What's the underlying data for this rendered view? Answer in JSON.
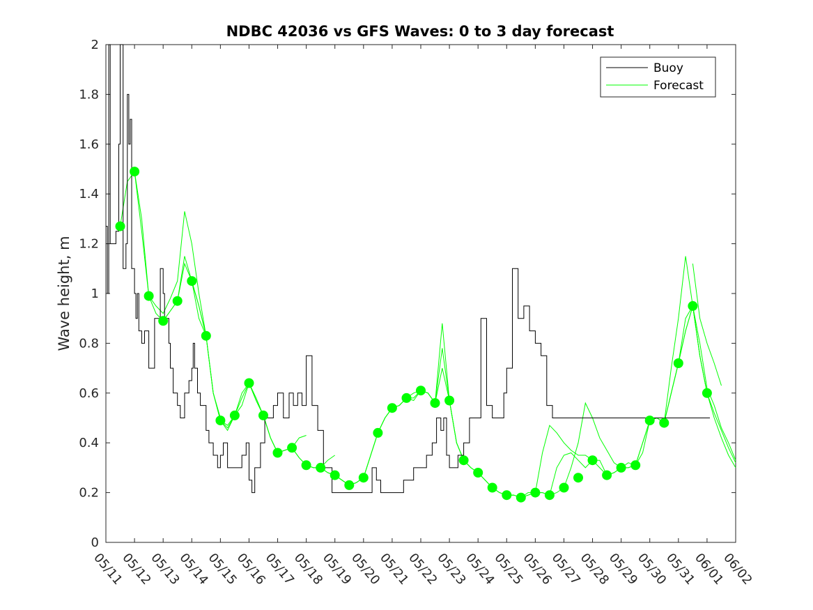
{
  "chart_data": {
    "type": "line",
    "title": "NDBC 42036 vs GFS Waves: 0 to 3 day forecast",
    "xlabel": "",
    "ylabel": "Wave height, m",
    "ylim": [
      0,
      2
    ],
    "yticks": [
      0,
      0.2,
      0.4,
      0.6,
      0.8,
      1,
      1.2,
      1.4,
      1.6,
      1.8,
      2
    ],
    "ytick_labels": [
      "0",
      "0.2",
      "0.4",
      "0.6",
      "0.8",
      "1",
      "1.2",
      "1.4",
      "1.6",
      "1.8",
      "2"
    ],
    "x_axis": "date",
    "xlim": [
      "05/11",
      "06/02"
    ],
    "xtick_labels": [
      "05/11",
      "05/12",
      "05/13",
      "05/14",
      "05/15",
      "05/16",
      "05/17",
      "05/18",
      "05/19",
      "05/20",
      "05/21",
      "05/22",
      "05/23",
      "05/24",
      "05/25",
      "05/26",
      "05/27",
      "05/28",
      "05/29",
      "05/30",
      "05/31",
      "06/01",
      "06/02"
    ],
    "legend": {
      "placement": "top-right",
      "entries": [
        "Buoy",
        "Forecast"
      ]
    },
    "grid": false,
    "colors": {
      "buoy": "#000000",
      "forecast": "#00ff00"
    },
    "buoy": {
      "name": "Buoy",
      "x_days": [
        0,
        0.05,
        0.1,
        0.15,
        0.25,
        0.35,
        0.45,
        0.5,
        0.6,
        0.7,
        0.75,
        0.8,
        0.85,
        0.9,
        1.0,
        1.05,
        1.1,
        1.15,
        1.25,
        1.3,
        1.35,
        1.4,
        1.5,
        1.7,
        1.8,
        1.9,
        2.0,
        2.05,
        2.1,
        2.2,
        2.25,
        2.35,
        2.5,
        2.6,
        2.75,
        2.9,
        3.0,
        3.05,
        3.1,
        3.2,
        3.3,
        3.5,
        3.6,
        3.75,
        3.9,
        4.0,
        4.1,
        4.25,
        4.35,
        4.45,
        4.6,
        4.75,
        4.9,
        5.0,
        5.1,
        5.2,
        5.4,
        5.55,
        5.7,
        5.85,
        6.0,
        6.2,
        6.4,
        6.55,
        6.7,
        6.85,
        7.0,
        7.2,
        7.4,
        7.6,
        7.75,
        7.9,
        8.0,
        8.2,
        8.4,
        8.6,
        8.7,
        8.8,
        8.9,
        9.0,
        9.15,
        9.3,
        9.45,
        9.6,
        9.8,
        10.0,
        10.2,
        10.4,
        10.6,
        10.75,
        10.9,
        11.0,
        11.2,
        11.4,
        11.55,
        11.7,
        11.8,
        11.9,
        12.0,
        12.15,
        12.3,
        12.5,
        12.7,
        12.9,
        13.1,
        13.3,
        13.5,
        13.7,
        13.9,
        14.0,
        14.2,
        14.4,
        14.6,
        14.8,
        15.0,
        15.2,
        15.4,
        15.6,
        15.8,
        16.0,
        16.2,
        16.4,
        16.6,
        16.8,
        17.0,
        17.2,
        17.4,
        17.6,
        17.8,
        18.0,
        18.2,
        18.4,
        18.6,
        18.8,
        19.0,
        19.15,
        19.3,
        19.45,
        19.6,
        19.75,
        19.9,
        20.0,
        20.15,
        20.3,
        20.45,
        20.6,
        20.7,
        20.8,
        20.9,
        21.0,
        21.1
      ],
      "values": [
        1.27,
        1.0,
        2.0,
        1.2,
        1.2,
        1.25,
        1.6,
        2.0,
        1.1,
        1.2,
        1.8,
        1.6,
        1.7,
        1.1,
        1.0,
        0.9,
        1.0,
        0.85,
        0.8,
        0.8,
        0.85,
        0.85,
        0.7,
        0.9,
        0.9,
        1.1,
        1.0,
        0.9,
        0.9,
        0.8,
        0.7,
        0.6,
        0.55,
        0.5,
        0.6,
        0.65,
        0.7,
        0.8,
        0.7,
        0.6,
        0.55,
        0.45,
        0.4,
        0.35,
        0.3,
        0.35,
        0.4,
        0.3,
        0.3,
        0.3,
        0.3,
        0.35,
        0.4,
        0.25,
        0.2,
        0.3,
        0.4,
        0.5,
        0.5,
        0.55,
        0.6,
        0.5,
        0.6,
        0.55,
        0.6,
        0.55,
        0.75,
        0.55,
        0.45,
        0.3,
        0.3,
        0.2,
        0.2,
        0.2,
        0.2,
        0.2,
        0.2,
        0.2,
        0.2,
        0.2,
        0.2,
        0.3,
        0.25,
        0.2,
        0.2,
        0.2,
        0.2,
        0.25,
        0.25,
        0.3,
        0.3,
        0.3,
        0.35,
        0.4,
        0.5,
        0.45,
        0.5,
        0.35,
        0.3,
        0.3,
        0.35,
        0.4,
        0.5,
        0.5,
        0.9,
        0.55,
        0.5,
        0.5,
        0.6,
        0.7,
        1.1,
        0.9,
        0.95,
        0.85,
        0.8,
        0.75,
        0.55,
        0.5,
        0.5,
        0.5,
        0.5,
        0.5,
        0.5,
        0.5,
        0.5,
        0.5,
        0.5,
        0.5,
        0.5,
        0.5,
        0.5,
        0.5,
        0.5,
        0.5,
        0.5,
        0.5,
        0.5,
        0.5,
        0.5,
        0.5,
        0.5,
        0.5,
        0.5,
        0.5,
        0.5,
        0.5,
        0.5,
        0.5,
        0.5,
        0.5,
        0.5
      ]
    },
    "forecast": {
      "name": "Forecast",
      "markers": {
        "x_days": [
          0.5,
          1.0,
          1.5,
          2.0,
          2.5,
          3.0,
          3.5,
          4.0,
          4.5,
          5.0,
          5.5,
          6.0,
          6.5,
          7.0,
          7.5,
          8.0,
          8.5,
          9.0,
          9.5,
          10.0,
          10.5,
          11.0,
          11.5,
          12.0,
          12.5,
          13.0,
          13.5,
          14.0,
          14.5,
          15.0,
          15.5,
          16.0,
          16.5,
          17.0,
          17.5,
          18.0,
          18.5,
          19.0,
          19.5,
          20.0,
          20.5,
          21.0
        ],
        "values": [
          1.27,
          1.49,
          0.99,
          0.89,
          0.97,
          1.05,
          0.83,
          0.49,
          0.51,
          0.64,
          0.51,
          0.36,
          0.38,
          0.31,
          0.3,
          0.27,
          0.23,
          0.26,
          0.44,
          0.54,
          0.58,
          0.61,
          0.56,
          0.57,
          0.33,
          0.28,
          0.22,
          0.19,
          0.18,
          0.2,
          0.19,
          0.22,
          0.26,
          0.33,
          0.27,
          0.3,
          0.31,
          0.49,
          0.48,
          0.72,
          0.95,
          0.6
        ]
      },
      "runs": [
        {
          "x_days": [
            0.5,
            0.75,
            1.0,
            1.25,
            1.5,
            1.75,
            2.0,
            2.25,
            2.5,
            2.75,
            3.0,
            3.25,
            3.5
          ],
          "values": [
            1.27,
            1.45,
            1.49,
            1.3,
            0.99,
            0.92,
            0.89,
            0.93,
            0.97,
            1.12,
            1.05,
            0.95,
            0.83
          ]
        },
        {
          "x_days": [
            1.0,
            1.25,
            1.5,
            1.75,
            2.0,
            2.25,
            2.5,
            2.75,
            3.0,
            3.25,
            3.5,
            3.75,
            4.0
          ],
          "values": [
            1.49,
            1.25,
            0.99,
            0.95,
            0.92,
            0.98,
            1.05,
            1.33,
            1.2,
            1.0,
            0.83,
            0.6,
            0.5
          ]
        },
        {
          "x_days": [
            2.0,
            2.25,
            2.5,
            2.75,
            3.0,
            3.25,
            3.5,
            3.75,
            4.0,
            4.25,
            4.5,
            4.75,
            5.0
          ],
          "values": [
            0.89,
            0.93,
            0.97,
            1.15,
            1.05,
            0.9,
            0.83,
            0.6,
            0.49,
            0.47,
            0.51,
            0.58,
            0.64
          ]
        },
        {
          "x_days": [
            3.0,
            3.25,
            3.5,
            3.75,
            4.0,
            4.25,
            4.5,
            4.75,
            5.0,
            5.25,
            5.5,
            5.75,
            6.0
          ],
          "values": [
            1.05,
            0.95,
            0.83,
            0.6,
            0.49,
            0.45,
            0.51,
            0.55,
            0.64,
            0.58,
            0.51,
            0.42,
            0.36
          ]
        },
        {
          "x_days": [
            4.0,
            4.25,
            4.5,
            4.75,
            5.0,
            5.25,
            5.5,
            5.75,
            6.0,
            6.25,
            6.5,
            6.75,
            7.0
          ],
          "values": [
            0.49,
            0.46,
            0.51,
            0.6,
            0.64,
            0.57,
            0.51,
            0.42,
            0.36,
            0.37,
            0.38,
            0.42,
            0.43
          ]
        },
        {
          "x_days": [
            5.0,
            5.25,
            5.5,
            5.75,
            6.0,
            6.25,
            6.5,
            6.75,
            7.0,
            7.25,
            7.5,
            7.75,
            8.0
          ],
          "values": [
            0.64,
            0.57,
            0.51,
            0.42,
            0.36,
            0.37,
            0.38,
            0.34,
            0.31,
            0.3,
            0.3,
            0.33,
            0.35
          ]
        },
        {
          "x_days": [
            6.0,
            6.25,
            6.5,
            6.75,
            7.0,
            7.25,
            7.5,
            7.75,
            8.0,
            8.25,
            8.5,
            8.75,
            9.0
          ],
          "values": [
            0.36,
            0.37,
            0.38,
            0.34,
            0.31,
            0.3,
            0.3,
            0.28,
            0.27,
            0.25,
            0.23,
            0.24,
            0.26
          ]
        },
        {
          "x_days": [
            7.0,
            7.25,
            7.5,
            7.75,
            8.0,
            8.25,
            8.5,
            8.75,
            9.0,
            9.25,
            9.5,
            9.75,
            10.0
          ],
          "values": [
            0.31,
            0.3,
            0.3,
            0.28,
            0.27,
            0.25,
            0.23,
            0.24,
            0.26,
            0.35,
            0.44,
            0.5,
            0.54
          ]
        },
        {
          "x_days": [
            8.0,
            8.25,
            8.5,
            8.75,
            9.0,
            9.25,
            9.5,
            9.75,
            10.0,
            10.25,
            10.5,
            10.75,
            11.0
          ],
          "values": [
            0.27,
            0.25,
            0.23,
            0.24,
            0.26,
            0.35,
            0.44,
            0.5,
            0.54,
            0.55,
            0.58,
            0.57,
            0.61
          ]
        },
        {
          "x_days": [
            9.0,
            9.25,
            9.5,
            9.75,
            10.0,
            10.25,
            10.5,
            10.75,
            11.0,
            11.25,
            11.5,
            11.75,
            12.0
          ],
          "values": [
            0.26,
            0.35,
            0.44,
            0.5,
            0.54,
            0.55,
            0.58,
            0.6,
            0.61,
            0.6,
            0.56,
            0.88,
            0.57
          ]
        },
        {
          "x_days": [
            10.0,
            10.25,
            10.5,
            10.75,
            11.0,
            11.25,
            11.5,
            11.75,
            12.0,
            12.25,
            12.5,
            12.75,
            13.0
          ],
          "values": [
            0.54,
            0.55,
            0.58,
            0.58,
            0.61,
            0.6,
            0.56,
            0.78,
            0.57,
            0.4,
            0.33,
            0.3,
            0.28
          ]
        },
        {
          "x_days": [
            11.0,
            11.25,
            11.5,
            11.75,
            12.0,
            12.25,
            12.5,
            12.75,
            13.0,
            13.25,
            13.5,
            13.75,
            14.0
          ],
          "values": [
            0.61,
            0.6,
            0.56,
            0.7,
            0.57,
            0.4,
            0.33,
            0.3,
            0.28,
            0.25,
            0.22,
            0.2,
            0.19
          ]
        },
        {
          "x_days": [
            12.0,
            12.25,
            12.5,
            12.75,
            13.0,
            13.25,
            13.5,
            13.75,
            14.0,
            14.25,
            14.5,
            14.75,
            15.0
          ],
          "values": [
            0.57,
            0.4,
            0.33,
            0.3,
            0.28,
            0.25,
            0.22,
            0.2,
            0.19,
            0.19,
            0.18,
            0.19,
            0.2
          ]
        },
        {
          "x_days": [
            13.0,
            13.25,
            13.5,
            13.75,
            14.0,
            14.25,
            14.5,
            14.75,
            15.0,
            15.25,
            15.5,
            15.75,
            16.0
          ],
          "values": [
            0.28,
            0.25,
            0.22,
            0.2,
            0.19,
            0.19,
            0.18,
            0.19,
            0.2,
            0.2,
            0.19,
            0.2,
            0.22
          ]
        },
        {
          "x_days": [
            14.0,
            14.25,
            14.5,
            14.75,
            15.0,
            15.25,
            15.5,
            15.75,
            16.0,
            16.25,
            16.5,
            16.75,
            17.0
          ],
          "values": [
            0.19,
            0.19,
            0.18,
            0.2,
            0.2,
            0.36,
            0.47,
            0.44,
            0.4,
            0.37,
            0.35,
            0.35,
            0.33
          ]
        },
        {
          "x_days": [
            15.0,
            15.25,
            15.5,
            15.75,
            16.0,
            16.25,
            16.5,
            16.75,
            17.0,
            17.25,
            17.5,
            17.75,
            18.0
          ],
          "values": [
            0.2,
            0.2,
            0.19,
            0.3,
            0.35,
            0.36,
            0.33,
            0.3,
            0.33,
            0.33,
            0.27,
            0.28,
            0.3
          ]
        },
        {
          "x_days": [
            16.0,
            16.25,
            16.5,
            16.75,
            17.0,
            17.25,
            17.5,
            17.75,
            18.0,
            18.25,
            18.5,
            18.75,
            19.0
          ],
          "values": [
            0.22,
            0.3,
            0.4,
            0.56,
            0.5,
            0.42,
            0.37,
            0.32,
            0.3,
            0.32,
            0.31,
            0.4,
            0.49
          ]
        },
        {
          "x_days": [
            17.0,
            17.25,
            17.5,
            17.75,
            18.0,
            18.25,
            18.5,
            18.75,
            19.0,
            19.25,
            19.5,
            19.75,
            20.0
          ],
          "values": [
            0.33,
            0.3,
            0.27,
            0.28,
            0.3,
            0.3,
            0.31,
            0.4,
            0.49,
            0.5,
            0.48,
            0.6,
            0.72
          ]
        },
        {
          "x_days": [
            18.0,
            18.25,
            18.5,
            18.75,
            19.0,
            19.25,
            19.5,
            19.75,
            20.0,
            20.25,
            20.5,
            20.75,
            21.0
          ],
          "values": [
            0.3,
            0.3,
            0.31,
            0.36,
            0.49,
            0.5,
            0.48,
            0.6,
            0.72,
            0.85,
            0.95,
            0.75,
            0.6
          ]
        },
        {
          "x_days": [
            19.0,
            19.25,
            19.5,
            19.75,
            20.0,
            20.25,
            20.5,
            20.75,
            21.0,
            21.25,
            21.5,
            21.75,
            22.0
          ],
          "values": [
            0.49,
            0.5,
            0.48,
            0.6,
            0.72,
            0.9,
            0.95,
            0.75,
            0.6,
            0.5,
            0.42,
            0.35,
            0.3
          ]
        },
        {
          "x_days": [
            19.5,
            19.75,
            20.0,
            20.25,
            20.5,
            20.75,
            21.0,
            21.25,
            21.5,
            21.75,
            22.0
          ],
          "values": [
            0.48,
            0.7,
            0.9,
            1.15,
            0.95,
            0.75,
            0.6,
            0.52,
            0.45,
            0.38,
            0.32
          ]
        },
        {
          "x_days": [
            20.0,
            20.25,
            20.5,
            20.75,
            21.0,
            21.25,
            21.5,
            21.75,
            22.0
          ],
          "values": [
            0.72,
            0.85,
            0.95,
            0.8,
            0.62,
            0.55,
            0.46,
            0.4,
            0.33
          ]
        },
        {
          "x_days": [
            20.5,
            20.75,
            21.0,
            21.25,
            21.5
          ],
          "values": [
            1.12,
            0.9,
            0.8,
            0.72,
            0.63
          ]
        }
      ]
    }
  }
}
